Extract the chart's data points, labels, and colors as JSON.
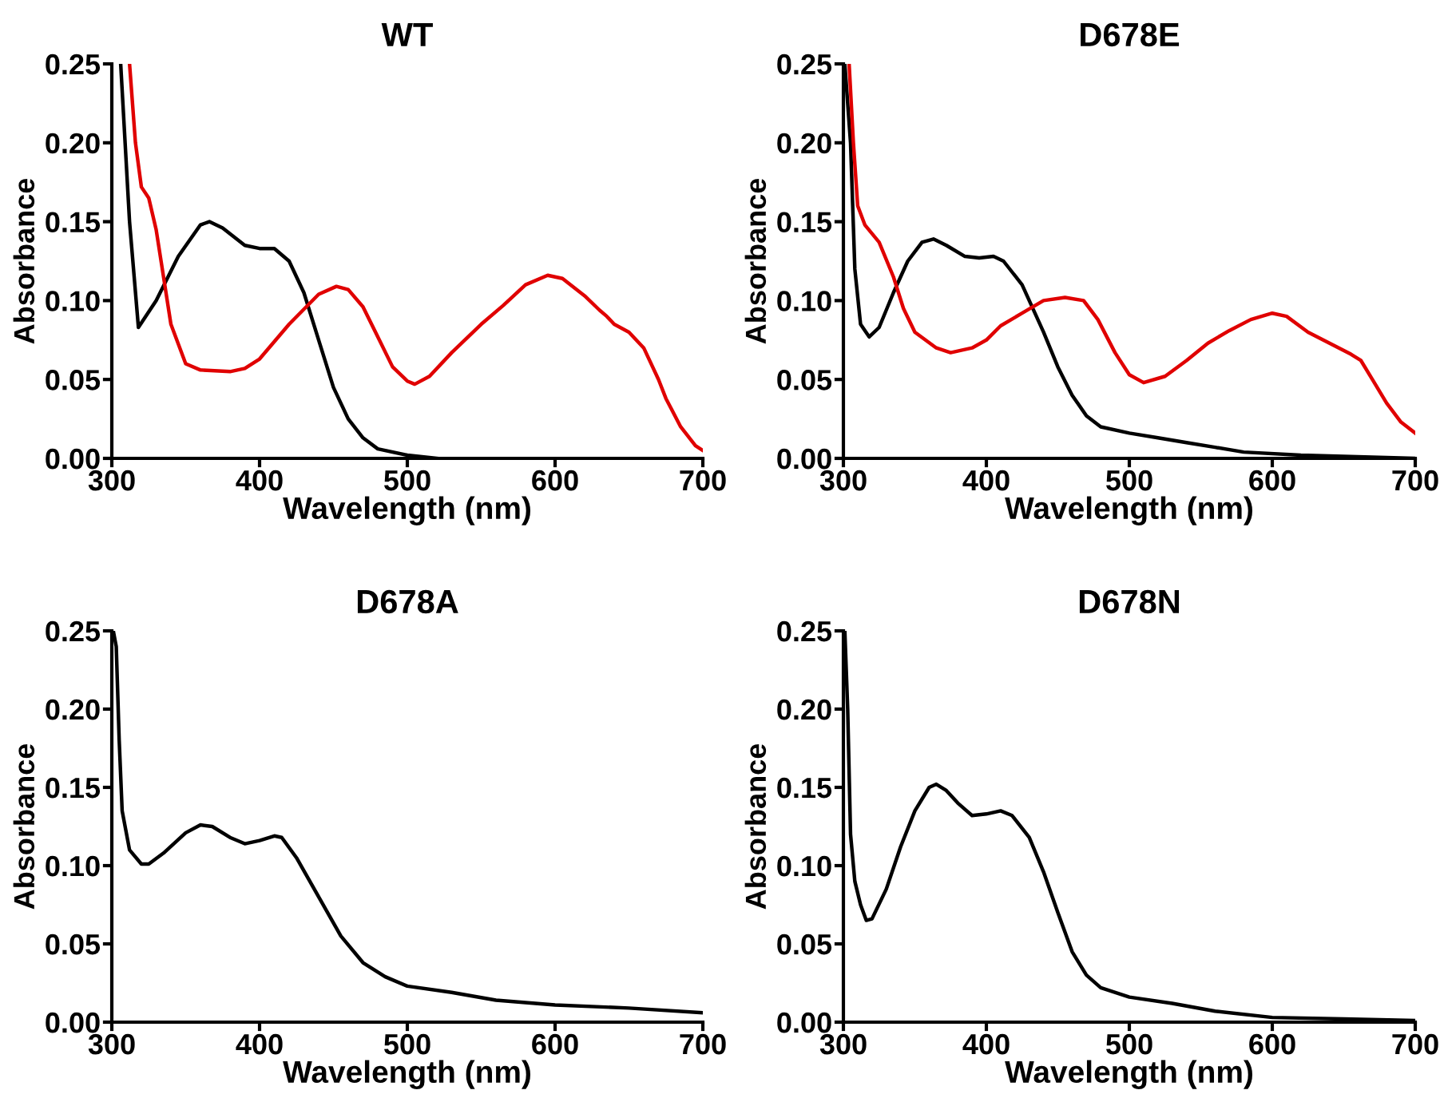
{
  "chart_data": [
    {
      "type": "line",
      "title": "WT",
      "xlabel": "Wavelength (nm)",
      "ylabel": "Absorbance",
      "xlim": [
        300,
        700
      ],
      "ylim": [
        0,
        0.25
      ],
      "xticks": [
        300,
        400,
        500,
        600,
        700
      ],
      "yticks": [
        {
          "value": 0,
          "label": "0.00"
        },
        {
          "value": 0.05,
          "label": "0.05"
        },
        {
          "value": 0.1,
          "label": "0.10"
        },
        {
          "value": 0.15,
          "label": "0.15"
        },
        {
          "value": 0.2,
          "label": "0.20"
        },
        {
          "value": 0.25,
          "label": "0.25"
        }
      ],
      "grid": false,
      "marker": "none",
      "line_style": "solid",
      "series": [
        {
          "color": "#000000",
          "x": [
            306,
            312,
            318,
            330,
            345,
            360,
            366,
            375,
            390,
            400,
            410,
            420,
            430,
            440,
            450,
            460,
            470,
            480,
            500,
            520
          ],
          "values": [
            0.25,
            0.15,
            0.083,
            0.1,
            0.128,
            0.148,
            0.15,
            0.146,
            0.135,
            0.133,
            0.133,
            0.125,
            0.105,
            0.075,
            0.045,
            0.025,
            0.013,
            0.006,
            0.002,
            0.0
          ]
        },
        {
          "color": "#e00000",
          "x": [
            312,
            316,
            320,
            325,
            330,
            335,
            340,
            350,
            360,
            380,
            390,
            400,
            420,
            440,
            452,
            460,
            470,
            480,
            490,
            500,
            505,
            515,
            530,
            550,
            565,
            580,
            595,
            605,
            620,
            630,
            635,
            640,
            650,
            660,
            670,
            675,
            685,
            695,
            700
          ],
          "values": [
            0.25,
            0.2,
            0.172,
            0.165,
            0.145,
            0.115,
            0.085,
            0.06,
            0.056,
            0.055,
            0.057,
            0.063,
            0.085,
            0.104,
            0.109,
            0.107,
            0.096,
            0.077,
            0.058,
            0.049,
            0.047,
            0.052,
            0.067,
            0.085,
            0.097,
            0.11,
            0.116,
            0.114,
            0.103,
            0.094,
            0.09,
            0.085,
            0.08,
            0.07,
            0.05,
            0.038,
            0.02,
            0.008,
            0.005
          ]
        }
      ]
    },
    {
      "type": "line",
      "title": "D678E",
      "xlabel": "Wavelength (nm)",
      "ylabel": "Absorbance",
      "xlim": [
        300,
        700
      ],
      "ylim": [
        0,
        0.25
      ],
      "xticks": [
        300,
        400,
        500,
        600,
        700
      ],
      "yticks": [
        {
          "value": 0,
          "label": "0.00"
        },
        {
          "value": 0.05,
          "label": "0.05"
        },
        {
          "value": 0.1,
          "label": "0.10"
        },
        {
          "value": 0.15,
          "label": "0.15"
        },
        {
          "value": 0.2,
          "label": "0.20"
        },
        {
          "value": 0.25,
          "label": "0.25"
        }
      ],
      "grid": false,
      "marker": "none",
      "line_style": "solid",
      "series": [
        {
          "color": "#000000",
          "x": [
            301,
            305,
            308,
            312,
            318,
            325,
            335,
            345,
            355,
            363,
            372,
            385,
            395,
            405,
            412,
            425,
            440,
            450,
            460,
            470,
            480,
            500,
            520,
            540,
            560,
            580,
            620,
            700
          ],
          "values": [
            0.25,
            0.2,
            0.12,
            0.085,
            0.077,
            0.083,
            0.105,
            0.125,
            0.137,
            0.139,
            0.135,
            0.128,
            0.127,
            0.128,
            0.125,
            0.11,
            0.08,
            0.058,
            0.04,
            0.027,
            0.02,
            0.016,
            0.013,
            0.01,
            0.007,
            0.004,
            0.002,
            0.0
          ]
        },
        {
          "color": "#e00000",
          "x": [
            304,
            307,
            310,
            315,
            325,
            335,
            342,
            350,
            365,
            375,
            390,
            400,
            410,
            425,
            440,
            455,
            468,
            478,
            490,
            500,
            510,
            525,
            540,
            555,
            570,
            585,
            600,
            610,
            625,
            640,
            655,
            662,
            670,
            680,
            690,
            700
          ],
          "values": [
            0.25,
            0.2,
            0.16,
            0.148,
            0.137,
            0.115,
            0.095,
            0.08,
            0.07,
            0.067,
            0.07,
            0.075,
            0.084,
            0.092,
            0.1,
            0.102,
            0.1,
            0.088,
            0.067,
            0.053,
            0.048,
            0.052,
            0.062,
            0.073,
            0.081,
            0.088,
            0.092,
            0.09,
            0.08,
            0.073,
            0.066,
            0.062,
            0.05,
            0.035,
            0.023,
            0.016
          ]
        }
      ]
    },
    {
      "type": "line",
      "title": "D678A",
      "xlabel": "Wavelength (nm)",
      "ylabel": "Absorbance",
      "xlim": [
        300,
        700
      ],
      "ylim": [
        0,
        0.25
      ],
      "xticks": [
        300,
        400,
        500,
        600,
        700
      ],
      "yticks": [
        {
          "value": 0,
          "label": "0.00"
        },
        {
          "value": 0.05,
          "label": "0.05"
        },
        {
          "value": 0.1,
          "label": "0.10"
        },
        {
          "value": 0.15,
          "label": "0.15"
        },
        {
          "value": 0.2,
          "label": "0.20"
        },
        {
          "value": 0.25,
          "label": "0.25"
        }
      ],
      "grid": false,
      "marker": "none",
      "line_style": "solid",
      "series": [
        {
          "color": "#000000",
          "x": [
            301,
            303,
            305,
            307,
            312,
            320,
            325,
            335,
            350,
            360,
            368,
            380,
            390,
            400,
            410,
            415,
            425,
            440,
            455,
            470,
            485,
            500,
            530,
            560,
            600,
            650,
            700
          ],
          "values": [
            0.25,
            0.24,
            0.18,
            0.135,
            0.11,
            0.101,
            0.101,
            0.108,
            0.121,
            0.126,
            0.125,
            0.118,
            0.114,
            0.116,
            0.119,
            0.118,
            0.105,
            0.08,
            0.055,
            0.038,
            0.029,
            0.023,
            0.019,
            0.014,
            0.011,
            0.009,
            0.006
          ]
        }
      ]
    },
    {
      "type": "line",
      "title": "D678N",
      "xlabel": "Wavelength (nm)",
      "ylabel": "Absorbance",
      "xlim": [
        300,
        700
      ],
      "ylim": [
        0,
        0.25
      ],
      "xticks": [
        300,
        400,
        500,
        600,
        700
      ],
      "yticks": [
        {
          "value": 0,
          "label": "0.00"
        },
        {
          "value": 0.05,
          "label": "0.05"
        },
        {
          "value": 0.1,
          "label": "0.10"
        },
        {
          "value": 0.15,
          "label": "0.15"
        },
        {
          "value": 0.2,
          "label": "0.20"
        },
        {
          "value": 0.25,
          "label": "0.25"
        }
      ],
      "grid": false,
      "marker": "none",
      "line_style": "solid",
      "series": [
        {
          "color": "#000000",
          "x": [
            301,
            303,
            305,
            308,
            312,
            316,
            320,
            330,
            340,
            350,
            360,
            365,
            372,
            380,
            390,
            400,
            410,
            418,
            430,
            440,
            450,
            460,
            470,
            480,
            500,
            530,
            560,
            600,
            650,
            700
          ],
          "values": [
            0.25,
            0.2,
            0.12,
            0.09,
            0.075,
            0.065,
            0.066,
            0.085,
            0.112,
            0.135,
            0.15,
            0.152,
            0.148,
            0.14,
            0.132,
            0.133,
            0.135,
            0.132,
            0.118,
            0.096,
            0.07,
            0.045,
            0.03,
            0.022,
            0.016,
            0.012,
            0.007,
            0.003,
            0.002,
            0.001
          ]
        }
      ]
    }
  ]
}
